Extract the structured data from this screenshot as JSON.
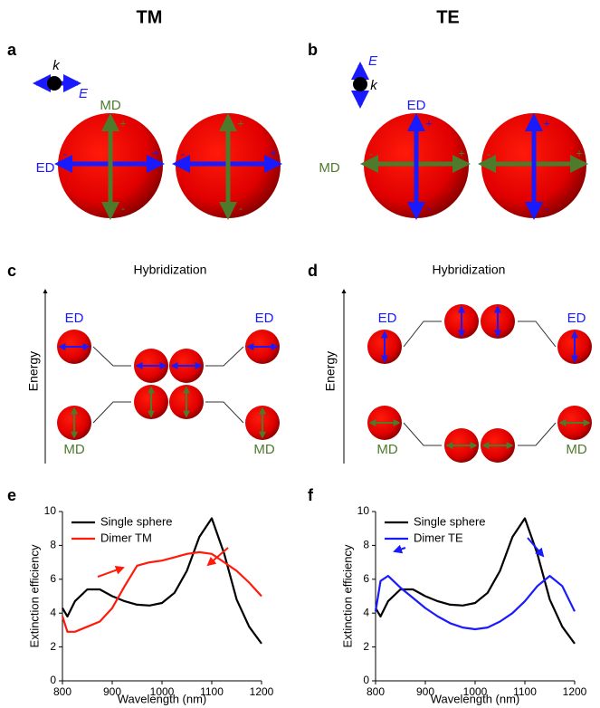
{
  "headers": [
    "TM",
    "TE"
  ],
  "panel_labels": [
    "a",
    "b",
    "c",
    "d",
    "e",
    "f"
  ],
  "panel_a": {
    "k": "k",
    "E": "E",
    "md": "MD",
    "ed": "ED",
    "signs": [
      [
        "+",
        "-",
        "-",
        "+"
      ],
      [
        "+",
        "-",
        "-",
        "+"
      ]
    ]
  },
  "panel_b": {
    "k": "k",
    "E": "E",
    "md": "MD",
    "ed": "ED",
    "signs": [
      [
        "+",
        "-",
        "-",
        "+"
      ],
      [
        "+",
        "-",
        "-",
        "+"
      ]
    ]
  },
  "panel_c": {
    "title": "Hybridization",
    "axis": "Energy",
    "labels": [
      "ED",
      "MD",
      "ED",
      "MD"
    ]
  },
  "panel_d": {
    "title": "Hybridization",
    "axis": "Energy",
    "labels": [
      "ED",
      "MD",
      "ED",
      "MD"
    ]
  },
  "chart_data": [
    {
      "type": "line",
      "xlabel": "Wavelength (nm)",
      "ylabel": "Extinction efficiency",
      "x": [
        800,
        810,
        825,
        850,
        875,
        900,
        925,
        950,
        975,
        1000,
        1025,
        1050,
        1075,
        1100,
        1125,
        1150,
        1175,
        1200
      ],
      "series": [
        {
          "name": "Single sphere",
          "color": "#000000",
          "values": [
            4.3,
            3.8,
            4.7,
            5.4,
            5.4,
            5.0,
            4.7,
            4.5,
            4.45,
            4.6,
            5.2,
            6.5,
            8.5,
            9.6,
            7.5,
            4.8,
            3.2,
            2.2
          ]
        },
        {
          "name": "Dimer TM",
          "color": "#ff1a0a",
          "values": [
            3.8,
            2.9,
            2.9,
            3.2,
            3.5,
            4.3,
            5.6,
            6.8,
            7.0,
            7.1,
            7.3,
            7.5,
            7.6,
            7.5,
            7.0,
            6.5,
            5.8,
            5.0
          ]
        }
      ],
      "xlim": [
        800,
        1200
      ],
      "ylim": [
        0,
        10
      ],
      "xticks": [
        800,
        900,
        1000,
        1100,
        1200
      ],
      "yticks": [
        0,
        2,
        4,
        6,
        8,
        10
      ],
      "legend": "upper left"
    },
    {
      "type": "line",
      "xlabel": "Wavelength (nm)",
      "ylabel": "Extinction efficiency",
      "x": [
        800,
        810,
        825,
        850,
        875,
        900,
        925,
        950,
        975,
        1000,
        1025,
        1050,
        1075,
        1100,
        1125,
        1150,
        1175,
        1200
      ],
      "series": [
        {
          "name": "Single sphere",
          "color": "#000000",
          "values": [
            4.3,
            3.8,
            4.7,
            5.4,
            5.4,
            5.0,
            4.7,
            4.5,
            4.45,
            4.6,
            5.2,
            6.5,
            8.5,
            9.6,
            7.5,
            4.8,
            3.2,
            2.2
          ]
        },
        {
          "name": "Dimer TE",
          "color": "#1a1aff",
          "values": [
            4.1,
            5.9,
            6.2,
            5.5,
            4.9,
            4.3,
            3.8,
            3.4,
            3.15,
            3.05,
            3.15,
            3.5,
            4.0,
            4.7,
            5.6,
            6.2,
            5.6,
            4.1
          ]
        }
      ],
      "xlim": [
        800,
        1200
      ],
      "ylim": [
        0,
        10
      ],
      "xticks": [
        800,
        900,
        1000,
        1100,
        1200
      ],
      "yticks": [
        0,
        2,
        4,
        6,
        8,
        10
      ],
      "legend": "upper left"
    }
  ]
}
